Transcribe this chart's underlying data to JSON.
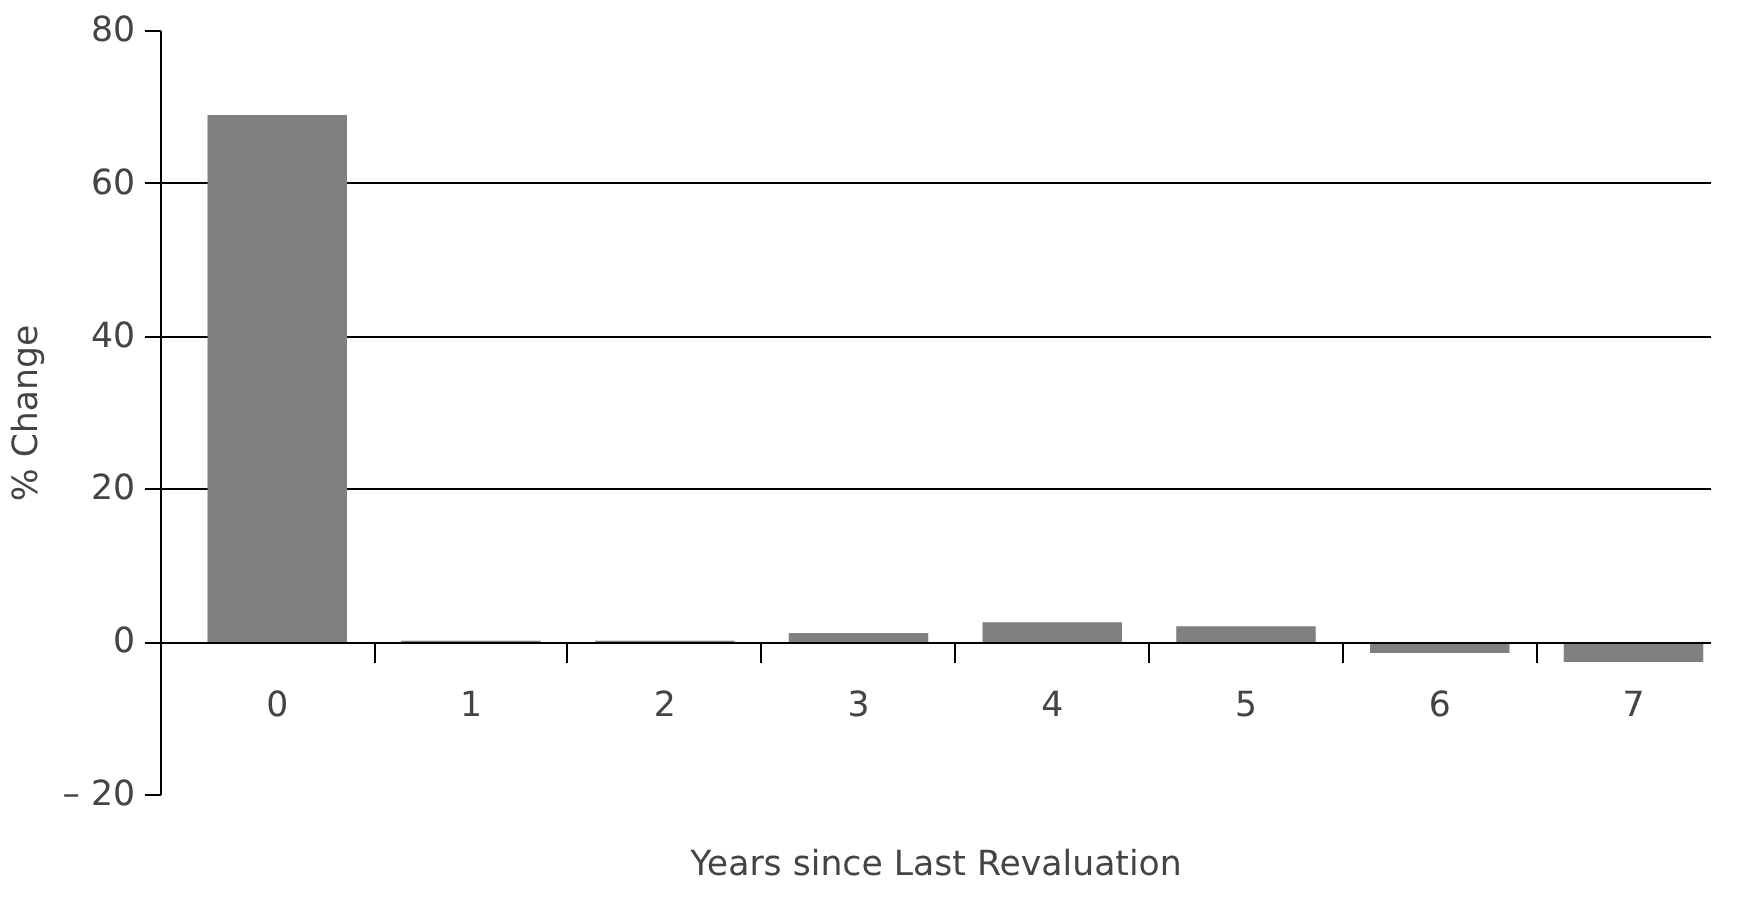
{
  "chart_data": {
    "type": "bar",
    "xlabel": "Years since Last Revaluation",
    "ylabel": "% Change",
    "categories": [
      "0",
      "1",
      "2",
      "3",
      "4",
      "5",
      "6",
      "7"
    ],
    "values": [
      69,
      0.2,
      0.2,
      1.2,
      2.6,
      2.1,
      -1.4,
      -2.6
    ],
    "color": "#808080",
    "ylim": [
      -20,
      80
    ],
    "yticks": [
      {
        "value": -20,
        "label": "– 20"
      },
      0,
      20,
      40,
      60,
      80
    ],
    "grid": "y"
  }
}
